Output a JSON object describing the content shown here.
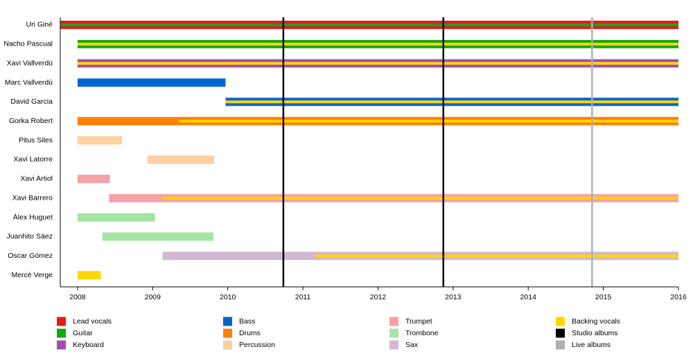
{
  "chart_data": {
    "type": "timeline",
    "categories": [
      "Uri Giné",
      "Nacho Pascual",
      "Xavi Vallverdú",
      "Marc Vallverdú",
      "David Garcia",
      "Gorka Robert",
      "Pitus Siles",
      "Xavi Latorre",
      "Xavi Artiol",
      "Xavi Barrero",
      "Àlex Huguet",
      "Juanhito Sáez",
      "Oscar Gómez",
      "Mercè Verge"
    ],
    "series": [
      {
        "name": "Lead vocals",
        "color": "#e41a1c",
        "values": [
          [
            2007.77,
            2016
          ],
          null,
          null,
          null,
          null,
          null,
          null,
          null,
          null,
          null,
          null,
          null,
          null,
          null
        ]
      },
      {
        "name": "Guitar",
        "color": "#12a812",
        "values": [
          [
            2007.77,
            2016
          ],
          [
            2008,
            2016
          ],
          null,
          null,
          null,
          null,
          null,
          null,
          null,
          null,
          null,
          null,
          null,
          null
        ]
      },
      {
        "name": "Keyboard",
        "color": "#a04fad",
        "values": [
          null,
          null,
          [
            2008,
            2016
          ],
          null,
          null,
          null,
          null,
          null,
          null,
          null,
          null,
          null,
          null,
          null
        ]
      },
      {
        "name": "Bass",
        "color": "#0066cc",
        "values": [
          null,
          null,
          null,
          [
            2008,
            2009.97
          ],
          [
            2009.97,
            2016
          ],
          null,
          null,
          null,
          null,
          null,
          null,
          null,
          null,
          null
        ]
      },
      {
        "name": "Drums",
        "color": "#ff8000",
        "values": [
          null,
          null,
          null,
          null,
          null,
          [
            2008,
            2016
          ],
          null,
          null,
          null,
          null,
          null,
          null,
          null,
          null
        ]
      },
      {
        "name": "Percussion",
        "color": "#fdd0a0",
        "values": [
          null,
          null,
          null,
          null,
          null,
          null,
          [
            2008,
            2008.59
          ],
          [
            2008.93,
            2009.82
          ],
          null,
          null,
          null,
          null,
          null,
          null
        ]
      },
      {
        "name": "Trumpet",
        "color": "#f6a0a8",
        "values": [
          null,
          null,
          null,
          null,
          null,
          null,
          null,
          null,
          [
            2008,
            2008.43
          ],
          [
            2008.42,
            2016
          ],
          null,
          null,
          null,
          null
        ]
      },
      {
        "name": "Trombone",
        "color": "#a3e4a3",
        "values": [
          null,
          null,
          null,
          null,
          null,
          null,
          null,
          null,
          null,
          null,
          [
            2008,
            2009.03
          ],
          [
            2008.33,
            2009.81
          ],
          null,
          null
        ]
      },
      {
        "name": "Sax",
        "color": "#d2b8d2",
        "values": [
          null,
          null,
          null,
          null,
          null,
          null,
          null,
          null,
          null,
          null,
          null,
          null,
          [
            2009.13,
            2016
          ],
          null
        ]
      },
      {
        "name": "Backing vocals",
        "color": "#ffd700",
        "values": [
          null,
          [
            2008,
            2016
          ],
          [
            2008,
            2016
          ],
          null,
          [
            2009.97,
            2016
          ],
          [
            2009.35,
            2016
          ],
          null,
          null,
          null,
          [
            2009.13,
            2016
          ],
          null,
          null,
          [
            2011.16,
            2016
          ],
          [
            2008,
            2008.31
          ]
        ]
      }
    ],
    "events": [
      {
        "name": "Studio albums",
        "color": "#000000",
        "values": [
          2010.74,
          2012.87
        ]
      },
      {
        "name": "Live albums",
        "color": "#b0b0b0",
        "values": [
          2014.85
        ]
      }
    ],
    "xlim": [
      2007.77,
      2016
    ],
    "xticks": [
      2008,
      2009,
      2010,
      2011,
      2012,
      2013,
      2014,
      2015,
      2016
    ]
  }
}
